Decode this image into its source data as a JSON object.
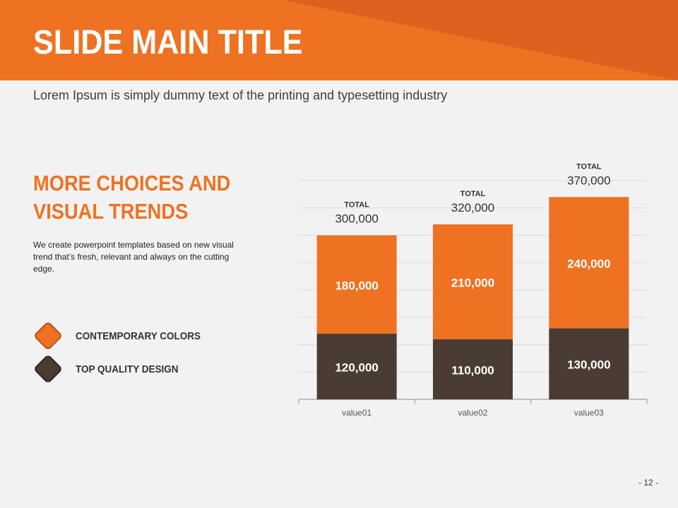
{
  "slide": {
    "title": "SLIDE MAIN TITLE",
    "subtitle": "Lorem Ipsum is simply dummy text of the printing and typesetting industry",
    "heading": "MORE CHOICES AND VISUAL TRENDS",
    "body": "We create powerpoint templates based on new visual trend that’s fresh, relevant and always on the cutting edge.",
    "legend": [
      {
        "label": "CONTEMPORARY COLORS",
        "color": "#ee7222"
      },
      {
        "label": "TOP QUALITY DESIGN",
        "color": "#4a3c32"
      }
    ],
    "page_number": "- 12 -"
  },
  "colors": {
    "accent": "#ee7222",
    "accent_dark": "#e06020",
    "dark": "#4a3c32"
  },
  "chart_data": {
    "type": "bar",
    "stacked": true,
    "categories": [
      "value01",
      "value02",
      "value03"
    ],
    "series": [
      {
        "values": [
          120000,
          110000,
          130000
        ],
        "color": "#4a3c32",
        "labels": [
          "120,000",
          "110,000",
          "130,000"
        ]
      },
      {
        "values": [
          180000,
          210000,
          240000
        ],
        "color": "#ee7222",
        "labels": [
          "180,000",
          "210,000",
          "240,000"
        ]
      }
    ],
    "totals": {
      "label": "TOTAL",
      "values": [
        "300,000",
        "320,000",
        "370,000"
      ]
    },
    "ylim": [
      0,
      400000
    ],
    "grid": true
  }
}
